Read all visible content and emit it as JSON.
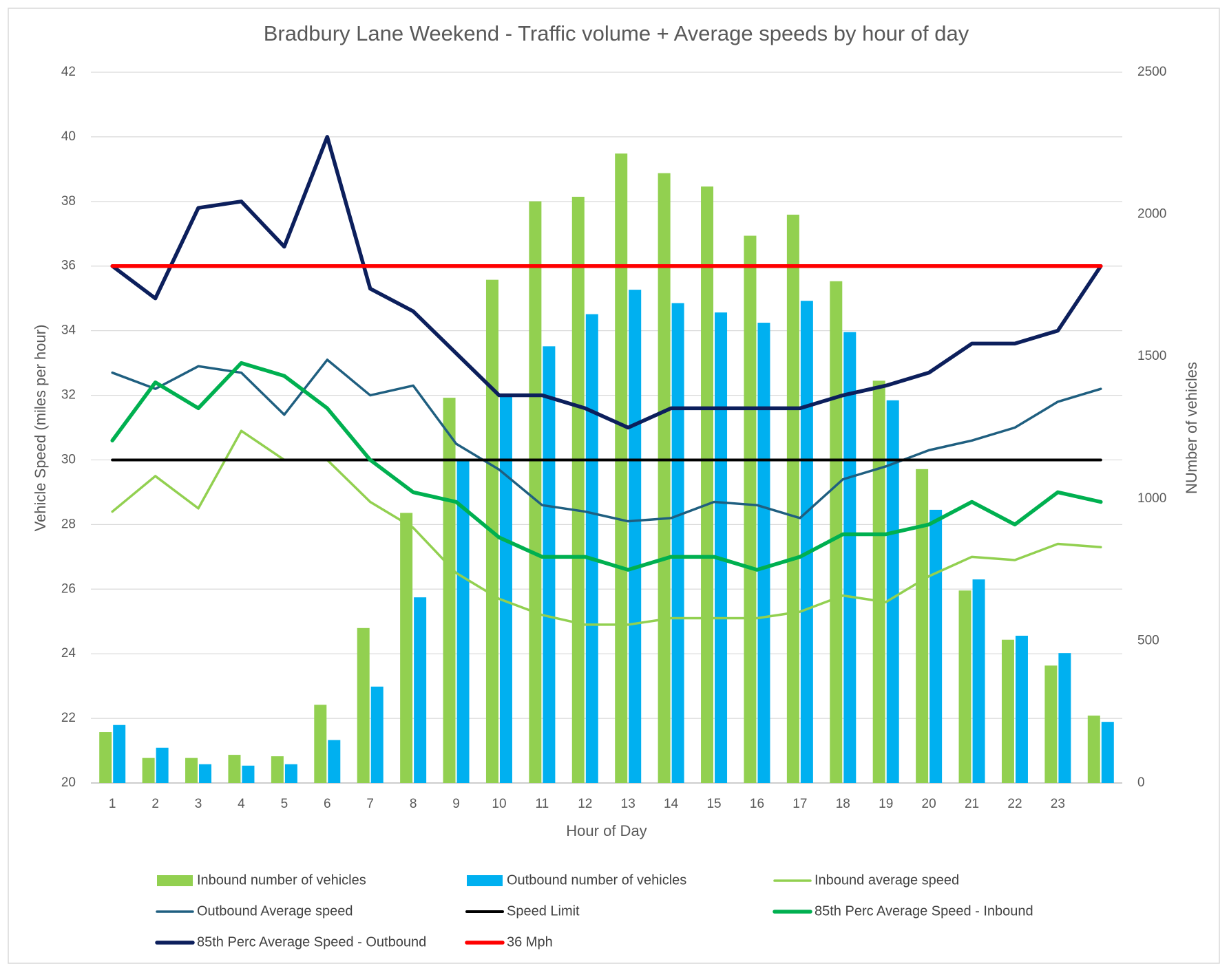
{
  "chart_data": {
    "type": "combo",
    "title": "Bradbury Lane Weekend - Traffic volume + Average speeds by hour of day",
    "x_label": "Hour of Day",
    "y_label": "Vehicle Speed (miles per hour)",
    "y2_label": "NUmber of vehicles",
    "categories": [
      "1",
      "2",
      "3",
      "4",
      "5",
      "6",
      "7",
      "8",
      "9",
      "10",
      "11",
      "12",
      "13",
      "14",
      "15",
      "16",
      "17",
      "18",
      "19",
      "20",
      "21",
      "22",
      "23",
      null
    ],
    "ylim": [
      20,
      42
    ],
    "yticks": [
      20,
      22,
      24,
      26,
      28,
      30,
      32,
      34,
      36,
      38,
      40,
      42
    ],
    "y2lim": [
      0,
      2500
    ],
    "y2ticks": [
      0,
      500,
      1000,
      1500,
      2000,
      2500
    ],
    "grid": true,
    "legend": "bottom",
    "series": [
      {
        "name": "Inbound number of vehicles",
        "type": "bar",
        "axis": "y2",
        "color": "#92d050",
        "values": [
          179,
          88,
          88,
          99,
          94,
          275,
          545,
          950,
          1355,
          1770,
          2046,
          2062,
          2214,
          2145,
          2098,
          1925,
          1999,
          1765,
          1415,
          1104,
          677,
          504,
          413,
          237
        ]
      },
      {
        "name": "Outbound number of vehicles",
        "type": "bar",
        "axis": "y2",
        "color": "#00b0f0",
        "values": [
          204,
          124,
          66,
          61,
          66,
          151,
          339,
          653,
          1134,
          1365,
          1536,
          1649,
          1735,
          1688,
          1655,
          1619,
          1696,
          1586,
          1346,
          961,
          716,
          518,
          457,
          215
        ]
      },
      {
        "name": "Inbound average speed",
        "type": "line",
        "color": "#92d050",
        "values": [
          28.4,
          29.5,
          28.5,
          30.9,
          30.0,
          30.0,
          28.7,
          27.9,
          26.5,
          25.7,
          25.2,
          24.9,
          24.9,
          25.1,
          25.1,
          25.1,
          25.3,
          25.8,
          25.6,
          26.4,
          27.0,
          26.9,
          27.4,
          27.3
        ]
      },
      {
        "name": "Outbound Average speed",
        "type": "line",
        "color": "#1f5f80",
        "values": [
          32.7,
          32.2,
          32.9,
          32.7,
          31.4,
          33.1,
          32.0,
          32.3,
          30.5,
          29.7,
          28.6,
          28.4,
          28.1,
          28.2,
          28.7,
          28.6,
          28.2,
          29.4,
          29.8,
          30.3,
          30.6,
          31.0,
          31.8,
          32.2
        ]
      },
      {
        "name": "Speed Limit",
        "type": "line",
        "color": "#000000",
        "values": [
          30,
          30,
          30,
          30,
          30,
          30,
          30,
          30,
          30,
          30,
          30,
          30,
          30,
          30,
          30,
          30,
          30,
          30,
          30,
          30,
          30,
          30,
          30,
          30
        ]
      },
      {
        "name": "85th Perc Average Speed  - Inbound",
        "type": "line",
        "color": "#00b050",
        "values": [
          30.6,
          32.4,
          31.6,
          33.0,
          32.6,
          31.6,
          30.0,
          29.0,
          28.7,
          27.6,
          27.0,
          27.0,
          26.6,
          27.0,
          27.0,
          26.6,
          27.0,
          27.7,
          27.7,
          28.0,
          28.7,
          28.0,
          29.0,
          28.7
        ]
      },
      {
        "name": "85th Perc Average Speed  - Outbound",
        "type": "line",
        "color": "#0c1f5c",
        "values": [
          36.0,
          35.0,
          37.8,
          38.0,
          36.6,
          40.0,
          35.3,
          34.6,
          33.3,
          32.0,
          32.0,
          31.6,
          31.0,
          31.6,
          31.6,
          31.6,
          31.6,
          32.0,
          32.3,
          32.7,
          33.6,
          33.6,
          34.0,
          36.0
        ]
      },
      {
        "name": "36 Mph",
        "type": "line",
        "color": "#ff0000",
        "values": [
          36,
          36,
          36,
          36,
          36,
          36,
          36,
          36,
          36,
          36,
          36,
          36,
          36,
          36,
          36,
          36,
          36,
          36,
          36,
          36,
          36,
          36,
          36,
          36
        ]
      }
    ]
  }
}
